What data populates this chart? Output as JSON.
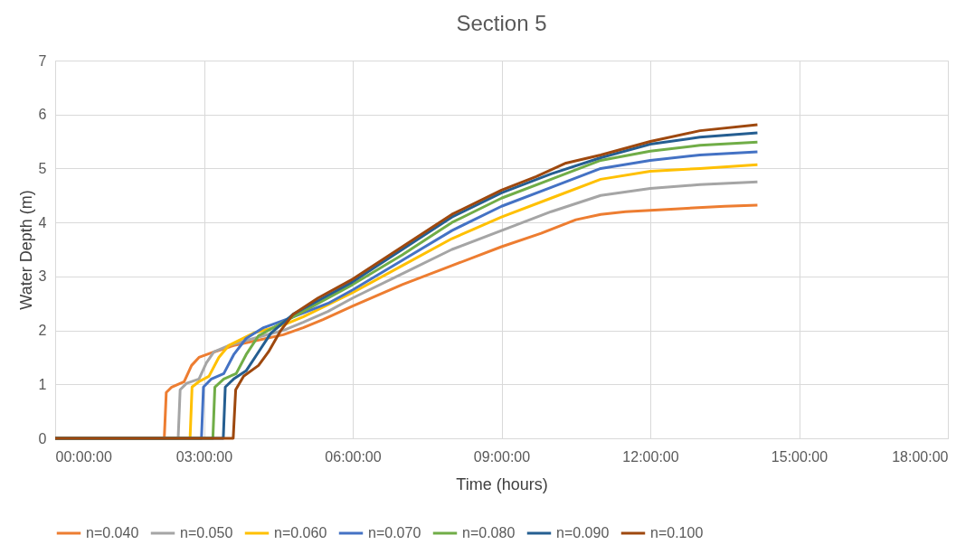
{
  "chart_data": {
    "type": "line",
    "title": "Section 5",
    "xlabel": "Time (hours)",
    "ylabel": "Water Depth (m)",
    "xlim": [
      0,
      18
    ],
    "xticks": [
      {
        "value": 0,
        "label": "00:00:00"
      },
      {
        "value": 3,
        "label": "03:00:00"
      },
      {
        "value": 6,
        "label": "06:00:00"
      },
      {
        "value": 9,
        "label": "09:00:00"
      },
      {
        "value": 12,
        "label": "12:00:00"
      },
      {
        "value": 15,
        "label": "15:00:00"
      },
      {
        "value": 18,
        "label": "18:00:00"
      }
    ],
    "ylim": [
      0,
      7
    ],
    "yticks": [
      0,
      1,
      2,
      3,
      4,
      5,
      6,
      7
    ],
    "grid": true,
    "legend": "bottom",
    "marker": "none",
    "line_style": "solid",
    "series": [
      {
        "name": "n=0.040",
        "color": "#ed7d31",
        "x": [
          0,
          2.2,
          2.24,
          2.35,
          2.6,
          2.75,
          2.9,
          3.2,
          3.6,
          4.0,
          4.6,
          5.0,
          5.4,
          6.0,
          7.0,
          8.0,
          9.0,
          9.8,
          10.5,
          11.0,
          11.5,
          12.5,
          13.5,
          14.16
        ],
        "values": [
          0,
          0,
          0.85,
          0.95,
          1.05,
          1.35,
          1.5,
          1.6,
          1.72,
          1.8,
          1.92,
          2.05,
          2.2,
          2.45,
          2.85,
          3.2,
          3.55,
          3.8,
          4.05,
          4.15,
          4.2,
          4.25,
          4.3,
          4.32
        ]
      },
      {
        "name": "n=0.050",
        "color": "#a5a5a5",
        "x": [
          0,
          2.48,
          2.52,
          2.65,
          2.9,
          3.05,
          3.2,
          3.5,
          4.0,
          4.6,
          5.0,
          5.5,
          6.0,
          7.0,
          8.0,
          9.0,
          10.0,
          11.0,
          12.0,
          13.0,
          14.16
        ],
        "values": [
          0,
          0,
          0.9,
          1.02,
          1.1,
          1.4,
          1.6,
          1.72,
          1.85,
          2.0,
          2.15,
          2.35,
          2.6,
          3.05,
          3.5,
          3.85,
          4.2,
          4.5,
          4.63,
          4.7,
          4.75
        ]
      },
      {
        "name": "n=0.060",
        "color": "#ffc000",
        "x": [
          0,
          2.72,
          2.76,
          2.9,
          3.1,
          3.3,
          3.5,
          4.0,
          4.6,
          5.0,
          6.0,
          7.0,
          8.0,
          9.0,
          10.0,
          11.0,
          12.0,
          13.0,
          14.16
        ],
        "values": [
          0,
          0,
          0.95,
          1.05,
          1.15,
          1.5,
          1.72,
          1.95,
          2.1,
          2.25,
          2.7,
          3.2,
          3.7,
          4.1,
          4.45,
          4.8,
          4.95,
          5.0,
          5.07
        ]
      },
      {
        "name": "n=0.070",
        "color": "#4472c4",
        "x": [
          0,
          2.95,
          2.99,
          3.15,
          3.4,
          3.6,
          3.85,
          4.2,
          4.8,
          5.5,
          6.0,
          7.0,
          8.0,
          9.0,
          10.0,
          11.0,
          12.0,
          13.0,
          14.16
        ],
        "values": [
          0,
          0,
          0.95,
          1.1,
          1.2,
          1.55,
          1.85,
          2.05,
          2.25,
          2.5,
          2.75,
          3.3,
          3.85,
          4.3,
          4.65,
          5.0,
          5.15,
          5.25,
          5.31
        ]
      },
      {
        "name": "n=0.080",
        "color": "#70ad47",
        "x": [
          0,
          3.18,
          3.22,
          3.4,
          3.65,
          3.85,
          4.1,
          4.5,
          5.0,
          6.0,
          7.0,
          8.0,
          9.0,
          10.0,
          11.0,
          12.0,
          13.0,
          14.16
        ],
        "values": [
          0,
          0,
          0.95,
          1.1,
          1.2,
          1.55,
          1.9,
          2.1,
          2.35,
          2.85,
          3.4,
          4.0,
          4.45,
          4.8,
          5.15,
          5.32,
          5.43,
          5.49
        ]
      },
      {
        "name": "n=0.090",
        "color": "#255e91",
        "x": [
          0,
          3.39,
          3.43,
          3.6,
          3.85,
          4.1,
          4.35,
          4.8,
          5.3,
          6.0,
          7.0,
          8.0,
          9.0,
          10.0,
          11.0,
          12.0,
          13.0,
          14.16
        ],
        "values": [
          0,
          0,
          0.95,
          1.1,
          1.25,
          1.6,
          1.95,
          2.3,
          2.55,
          2.9,
          3.5,
          4.1,
          4.55,
          4.9,
          5.2,
          5.45,
          5.58,
          5.66
        ]
      },
      {
        "name": "n=0.100",
        "color": "#9e480e",
        "x": [
          0,
          3.59,
          3.64,
          3.8,
          4.1,
          4.3,
          4.55,
          4.8,
          5.3,
          6.0,
          7.0,
          8.0,
          9.0,
          9.7,
          10.3,
          11.0,
          12.0,
          13.0,
          14.16
        ],
        "values": [
          0,
          0,
          0.9,
          1.15,
          1.35,
          1.6,
          2.0,
          2.3,
          2.6,
          2.95,
          3.55,
          4.15,
          4.6,
          4.85,
          5.1,
          5.25,
          5.5,
          5.7,
          5.81
        ]
      }
    ]
  }
}
